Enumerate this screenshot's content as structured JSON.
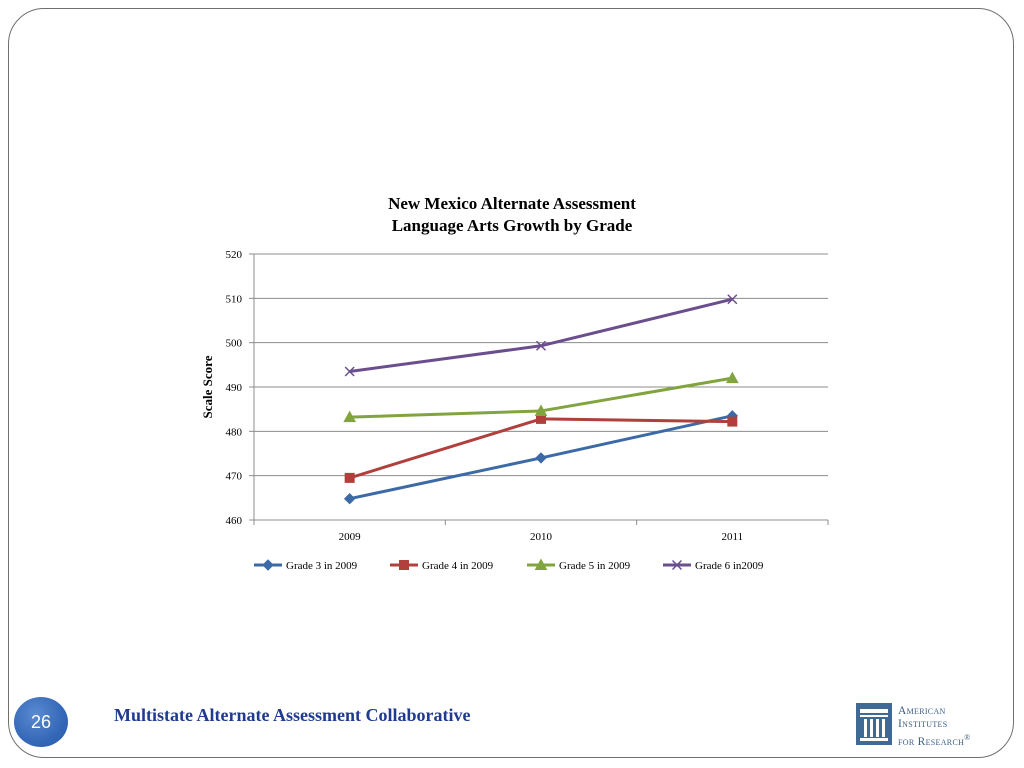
{
  "chart_data": {
    "type": "line",
    "title_line1": "New Mexico Alternate Assessment",
    "title_line2": "Language Arts Growth by Grade",
    "xlabel": "",
    "ylabel": "Scale Score",
    "categories": [
      "2009",
      "2010",
      "2011"
    ],
    "ylim": [
      460,
      520
    ],
    "yticks": [
      460,
      470,
      480,
      490,
      500,
      510,
      520
    ],
    "grid": true,
    "legend_position": "bottom",
    "series": [
      {
        "name": "Grade 3 in 2009",
        "values": [
          464.8,
          474.0,
          483.5
        ],
        "color": "#3c6aa6",
        "marker": "diamond"
      },
      {
        "name": "Grade 4 in 2009",
        "values": [
          469.5,
          482.8,
          482.2
        ],
        "color": "#b1403c",
        "marker": "square"
      },
      {
        "name": "Grade 5 in 2009",
        "values": [
          483.2,
          484.6,
          492.0
        ],
        "color": "#82a43f",
        "marker": "triangle"
      },
      {
        "name": "Grade 6 in2009",
        "values": [
          493.5,
          499.3,
          509.8
        ],
        "color": "#6b4e8e",
        "marker": "x"
      }
    ]
  },
  "footer": {
    "page_number": "26",
    "title": "Multistate Alternate Assessment Collaborative"
  },
  "logo": {
    "line1": "American",
    "line2": "Institutes",
    "line3": "for Research",
    "registered": "®"
  }
}
